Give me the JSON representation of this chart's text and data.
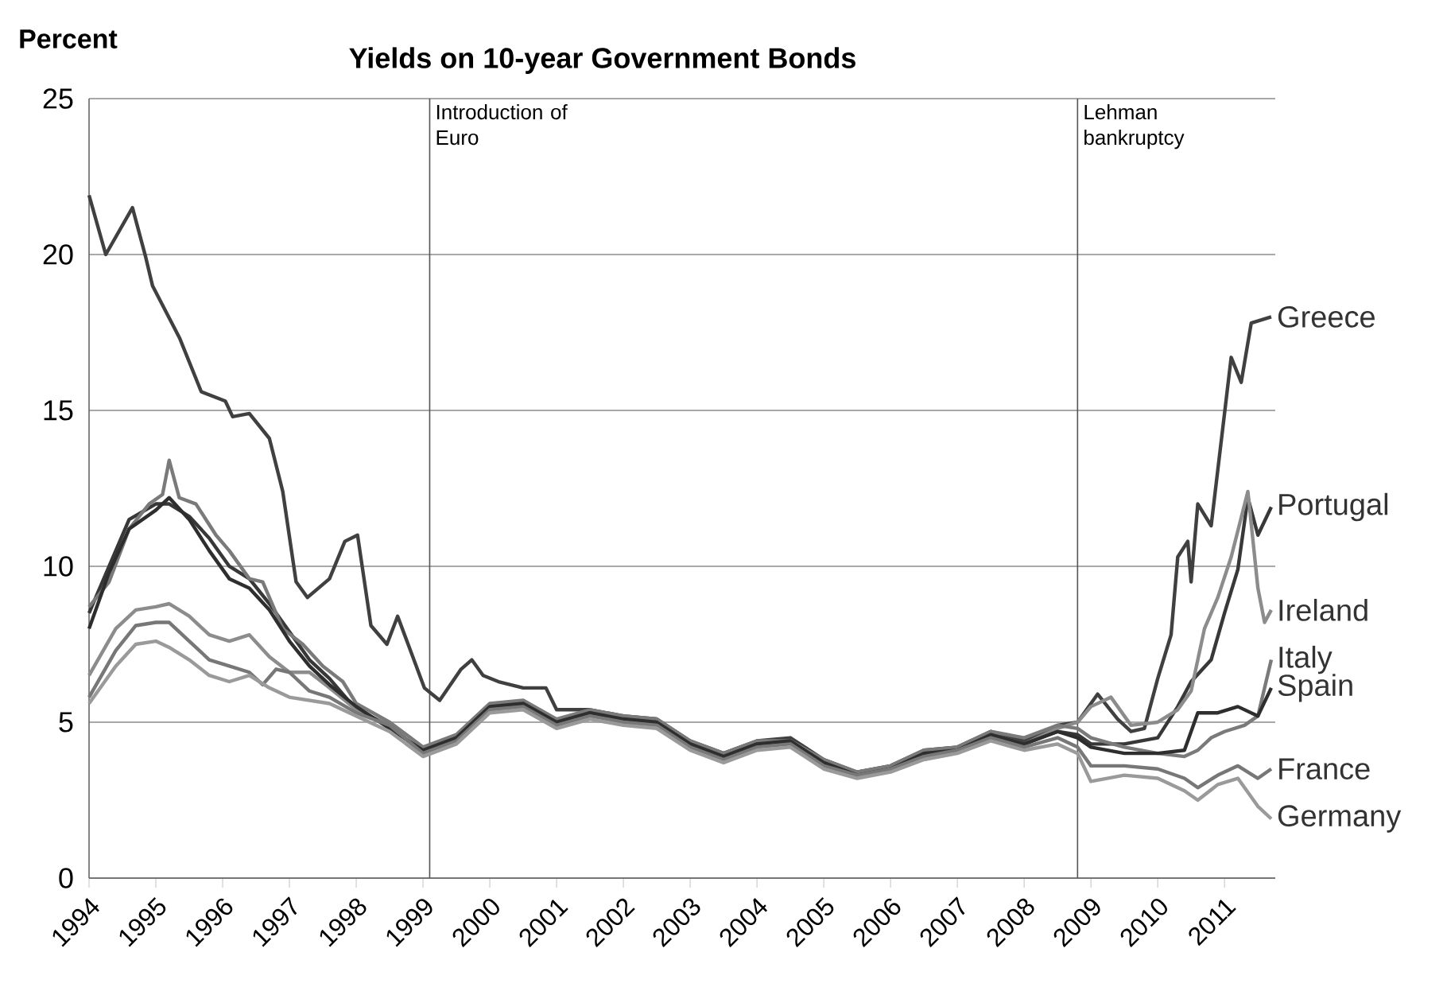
{
  "chart_data": {
    "type": "line",
    "title": "Yields on 10-year Government Bonds",
    "ylabel": "Percent",
    "xlim": [
      1994,
      2011.76
    ],
    "ylim": [
      0,
      25
    ],
    "xticks": [
      1994,
      1995,
      1996,
      1997,
      1998,
      1999,
      2000,
      2001,
      2002,
      2003,
      2004,
      2005,
      2006,
      2007,
      2008,
      2009,
      2010,
      2011
    ],
    "yticks": [
      0,
      5,
      10,
      15,
      20,
      25
    ],
    "grid": "y",
    "legend": false,
    "ref_lines": [
      {
        "axis": "x",
        "value": 1999.1,
        "label": "Introduction of Euro",
        "color": "#555555"
      },
      {
        "axis": "x",
        "value": 2008.8,
        "label": "Lehman bankruptcy",
        "color": "#555555"
      }
    ],
    "series": [
      {
        "name": "Greece",
        "color": "#404040",
        "x": [
          1994.0,
          1994.25,
          1994.65,
          1994.85,
          1994.95,
          1995.36,
          1995.68,
          1996.04,
          1996.15,
          1996.4,
          1996.7,
          1996.9,
          1997.1,
          1997.27,
          1997.6,
          1997.83,
          1998.02,
          1998.22,
          1998.46,
          1998.62,
          1999.02,
          1999.25,
          1999.57,
          1999.73,
          1999.9,
          2000.13,
          2000.5,
          2000.84,
          2001.0,
          2001.5,
          2002,
          2002.5,
          2003,
          2003.5,
          2004,
          2004.5,
          2005,
          2005.5,
          2006,
          2006.5,
          2007,
          2007.5,
          2008,
          2008.5,
          2008.8,
          2009.1,
          2009.4,
          2009.6,
          2009.8,
          2010.0,
          2010.2,
          2010.3,
          2010.45,
          2010.5,
          2010.6,
          2010.8,
          2010.95,
          2011.1,
          2011.25,
          2011.4,
          2011.7
        ],
        "values": [
          21.9,
          20.0,
          21.5,
          19.9,
          19.0,
          17.3,
          15.6,
          15.3,
          14.8,
          14.9,
          14.1,
          12.4,
          9.5,
          9.0,
          9.6,
          10.8,
          11.0,
          8.1,
          7.5,
          8.4,
          6.1,
          5.7,
          6.7,
          7.0,
          6.5,
          6.3,
          6.1,
          6.1,
          5.4,
          5.4,
          5.2,
          5.1,
          4.4,
          4.0,
          4.4,
          4.5,
          3.8,
          3.4,
          3.6,
          4.1,
          4.2,
          4.7,
          4.4,
          4.9,
          5.0,
          5.9,
          5.1,
          4.7,
          4.8,
          6.4,
          7.8,
          10.3,
          10.8,
          9.5,
          12.0,
          11.3,
          14.0,
          16.7,
          15.9,
          17.8,
          18.0
        ]
      },
      {
        "name": "Portugal",
        "color": "#383838",
        "x": [
          1994.0,
          1994.3,
          1994.6,
          1995.0,
          1995.2,
          1995.5,
          1995.8,
          1996.1,
          1996.4,
          1996.7,
          1997.0,
          1997.3,
          1997.6,
          1998.0,
          1998.5,
          1999.0,
          1999.5,
          2000,
          2000.5,
          2001,
          2001.5,
          2002,
          2002.5,
          2003,
          2003.5,
          2004,
          2004.5,
          2005,
          2005.5,
          2006,
          2006.5,
          2007,
          2007.5,
          2008,
          2008.5,
          2008.8,
          2009.0,
          2009.5,
          2010.0,
          2010.3,
          2010.5,
          2010.8,
          2011.0,
          2011.2,
          2011.35,
          2011.5,
          2011.7
        ],
        "values": [
          8.5,
          10.0,
          11.5,
          12.0,
          12.0,
          11.6,
          10.9,
          10.0,
          9.6,
          8.8,
          7.9,
          7.0,
          6.4,
          5.4,
          4.9,
          4.0,
          4.5,
          5.5,
          5.6,
          5.0,
          5.3,
          5.1,
          5.0,
          4.3,
          3.9,
          4.3,
          4.4,
          3.7,
          3.3,
          3.5,
          4.0,
          4.1,
          4.6,
          4.3,
          4.7,
          4.6,
          4.3,
          4.3,
          4.5,
          5.5,
          6.3,
          7.0,
          8.5,
          9.9,
          12.2,
          11.0,
          11.9
        ]
      },
      {
        "name": "Ireland",
        "color": "#8c8c8c",
        "x": [
          1994.0,
          1994.4,
          1994.7,
          1995.0,
          1995.2,
          1995.5,
          1995.8,
          1996.1,
          1996.4,
          1996.7,
          1997.0,
          1997.3,
          1997.6,
          1998.0,
          1998.5,
          1999.0,
          1999.5,
          2000,
          2000.5,
          2001,
          2001.5,
          2002,
          2002.5,
          2003,
          2003.5,
          2004,
          2004.5,
          2005,
          2005.5,
          2006,
          2006.5,
          2007,
          2007.5,
          2008,
          2008.5,
          2008.8,
          2009.0,
          2009.3,
          2009.6,
          2010.0,
          2010.3,
          2010.5,
          2010.7,
          2010.9,
          2011.1,
          2011.35,
          2011.5,
          2011.6,
          2011.7
        ],
        "values": [
          6.5,
          8.0,
          8.6,
          8.7,
          8.8,
          8.4,
          7.8,
          7.6,
          7.8,
          7.1,
          6.6,
          6.6,
          6.1,
          5.4,
          4.9,
          4.0,
          4.5,
          5.5,
          5.6,
          5.0,
          5.3,
          5.1,
          5.0,
          4.3,
          3.9,
          4.3,
          4.4,
          3.7,
          3.3,
          3.5,
          4.0,
          4.1,
          4.6,
          4.3,
          4.8,
          5.0,
          5.5,
          5.8,
          4.9,
          5.0,
          5.4,
          6.0,
          8.0,
          9.0,
          10.3,
          12.4,
          9.3,
          8.2,
          8.6
        ]
      },
      {
        "name": "Italy",
        "color": "#7a7a7a",
        "x": [
          1994.0,
          1994.3,
          1994.6,
          1994.9,
          1995.1,
          1995.2,
          1995.35,
          1995.6,
          1995.9,
          1996.1,
          1996.4,
          1996.6,
          1996.9,
          1997.2,
          1997.5,
          1997.8,
          1998.0,
          1998.5,
          1999.0,
          1999.5,
          2000,
          2000.5,
          2001,
          2001.5,
          2002,
          2002.5,
          2003,
          2003.5,
          2004,
          2004.5,
          2005,
          2005.5,
          2006,
          2006.5,
          2007,
          2007.5,
          2008,
          2008.5,
          2008.8,
          2009.0,
          2009.5,
          2010.0,
          2010.4,
          2010.6,
          2010.8,
          2011.0,
          2011.3,
          2011.5,
          2011.7
        ],
        "values": [
          8.7,
          9.5,
          11.2,
          12.0,
          12.3,
          13.4,
          12.2,
          12.0,
          11.0,
          10.5,
          9.6,
          9.5,
          8.0,
          7.5,
          6.8,
          6.3,
          5.6,
          5.0,
          4.2,
          4.6,
          5.6,
          5.7,
          5.1,
          5.4,
          5.2,
          5.1,
          4.4,
          4.0,
          4.4,
          4.4,
          3.8,
          3.4,
          3.6,
          4.1,
          4.2,
          4.7,
          4.5,
          4.9,
          4.8,
          4.5,
          4.2,
          4.0,
          3.9,
          4.1,
          4.5,
          4.7,
          4.9,
          5.2,
          7.0
        ]
      },
      {
        "name": "Spain",
        "color": "#2e2e2e",
        "x": [
          1994.0,
          1994.3,
          1994.6,
          1995.0,
          1995.2,
          1995.5,
          1995.8,
          1996.1,
          1996.4,
          1996.7,
          1997.0,
          1997.3,
          1997.6,
          1998.0,
          1998.5,
          1999.0,
          1999.5,
          2000,
          2000.5,
          2001,
          2001.5,
          2002,
          2002.5,
          2003,
          2003.5,
          2004,
          2004.5,
          2005,
          2005.5,
          2006,
          2006.5,
          2007,
          2007.5,
          2008,
          2008.5,
          2008.8,
          2009.0,
          2009.5,
          2010.0,
          2010.4,
          2010.6,
          2010.9,
          2011.2,
          2011.5,
          2011.7
        ],
        "values": [
          8.0,
          9.8,
          11.2,
          11.8,
          12.2,
          11.5,
          10.5,
          9.6,
          9.3,
          8.6,
          7.6,
          6.8,
          6.2,
          5.5,
          4.8,
          4.1,
          4.5,
          5.5,
          5.6,
          5.0,
          5.3,
          5.1,
          5.0,
          4.3,
          3.9,
          4.3,
          4.4,
          3.7,
          3.3,
          3.5,
          4.0,
          4.1,
          4.6,
          4.3,
          4.7,
          4.5,
          4.2,
          4.0,
          4.0,
          4.1,
          5.3,
          5.3,
          5.5,
          5.2,
          6.1
        ]
      },
      {
        "name": "France",
        "color": "#777777",
        "x": [
          1994.0,
          1994.4,
          1994.7,
          1995.0,
          1995.2,
          1995.5,
          1995.8,
          1996.1,
          1996.4,
          1996.6,
          1996.8,
          1997.0,
          1997.3,
          1997.6,
          1998.0,
          1998.5,
          1999.0,
          1999.5,
          2000,
          2000.5,
          2001,
          2001.5,
          2002,
          2002.5,
          2003,
          2003.5,
          2004,
          2004.5,
          2005,
          2005.5,
          2006,
          2006.5,
          2007,
          2007.5,
          2008,
          2008.5,
          2008.8,
          2009.0,
          2009.5,
          2010.0,
          2010.4,
          2010.6,
          2010.9,
          2011.2,
          2011.5,
          2011.7
        ],
        "values": [
          5.8,
          7.3,
          8.1,
          8.2,
          8.2,
          7.6,
          7.0,
          6.8,
          6.6,
          6.2,
          6.7,
          6.6,
          6.0,
          5.8,
          5.3,
          4.9,
          4.0,
          4.4,
          5.4,
          5.5,
          4.9,
          5.2,
          5.0,
          4.9,
          4.2,
          3.8,
          4.2,
          4.3,
          3.6,
          3.3,
          3.5,
          3.9,
          4.1,
          4.5,
          4.2,
          4.5,
          4.2,
          3.6,
          3.6,
          3.5,
          3.2,
          2.9,
          3.3,
          3.6,
          3.2,
          3.5
        ]
      },
      {
        "name": "Germany",
        "color": "#9a9a9a",
        "x": [
          1994.0,
          1994.4,
          1994.7,
          1995.0,
          1995.2,
          1995.5,
          1995.8,
          1996.1,
          1996.4,
          1996.7,
          1997.0,
          1997.3,
          1997.6,
          1998.0,
          1998.5,
          1999.0,
          1999.5,
          2000,
          2000.5,
          2001,
          2001.5,
          2002,
          2002.5,
          2003,
          2003.5,
          2004,
          2004.5,
          2005,
          2005.5,
          2006,
          2006.5,
          2007,
          2007.5,
          2008,
          2008.5,
          2008.8,
          2009.0,
          2009.5,
          2010.0,
          2010.4,
          2010.6,
          2010.9,
          2011.2,
          2011.5,
          2011.7
        ],
        "values": [
          5.6,
          6.8,
          7.5,
          7.6,
          7.4,
          7.0,
          6.5,
          6.3,
          6.5,
          6.1,
          5.8,
          5.7,
          5.6,
          5.2,
          4.7,
          3.9,
          4.3,
          5.3,
          5.4,
          4.8,
          5.1,
          4.9,
          4.8,
          4.1,
          3.7,
          4.1,
          4.2,
          3.5,
          3.2,
          3.4,
          3.8,
          4.0,
          4.4,
          4.1,
          4.3,
          4.0,
          3.1,
          3.3,
          3.2,
          2.8,
          2.5,
          3.0,
          3.2,
          2.3,
          1.9
        ]
      }
    ]
  }
}
